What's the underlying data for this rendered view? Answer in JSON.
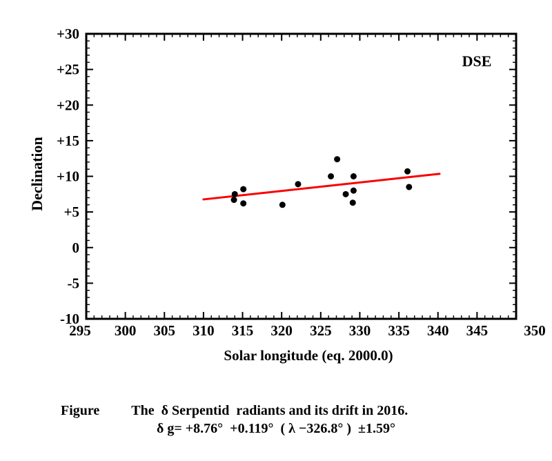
{
  "chart_data": {
    "type": "scatter",
    "corner_label": "DSE",
    "xlabel": "Solar longitude (eq. 2000.0)",
    "ylabel": "Declination",
    "xlim": [
      295,
      350
    ],
    "ylim": [
      -10,
      30
    ],
    "x_ticks": [
      295,
      300,
      305,
      310,
      315,
      320,
      325,
      330,
      335,
      340,
      345,
      350
    ],
    "x_tick_labels": [
      "295",
      "300",
      "305",
      "310",
      "315",
      "320",
      "325",
      "330",
      "335",
      "340",
      "345",
      "350"
    ],
    "y_ticks": [
      -10,
      -5,
      0,
      5,
      10,
      15,
      20,
      25,
      30
    ],
    "y_tick_labels": [
      "-10",
      "-5",
      "0",
      "+5",
      "+10",
      "+15",
      "+20",
      "+25",
      "+30"
    ],
    "minor_tick_step": 1,
    "major_tick_step": 5,
    "grid": false,
    "point_color": "#000000",
    "axis_color": "#000000",
    "points": [
      {
        "x": 313.9,
        "y": 6.7
      },
      {
        "x": 314.0,
        "y": 7.5
      },
      {
        "x": 315.1,
        "y": 8.2
      },
      {
        "x": 315.1,
        "y": 6.2
      },
      {
        "x": 320.1,
        "y": 6.0
      },
      {
        "x": 322.1,
        "y": 8.9
      },
      {
        "x": 326.3,
        "y": 10.0
      },
      {
        "x": 327.1,
        "y": 12.4
      },
      {
        "x": 328.2,
        "y": 7.5
      },
      {
        "x": 329.2,
        "y": 10.0
      },
      {
        "x": 329.2,
        "y": 8.0
      },
      {
        "x": 329.1,
        "y": 6.3
      },
      {
        "x": 336.1,
        "y": 10.7
      },
      {
        "x": 336.3,
        "y": 8.5
      }
    ],
    "trend_line": {
      "color": "#f80000",
      "slope": 0.119,
      "intercept": 8.76,
      "lambda0": 326.8,
      "x_start": 310,
      "x_end": 340.2
    }
  },
  "caption": {
    "prefix": "Figure",
    "body": "The  δ Serpentid  radiants and its drift in 2016."
  },
  "formula": {
    "text": "δ g= +8.76°  +0.119°  ( λ −326.8° )  ±1.59°"
  }
}
